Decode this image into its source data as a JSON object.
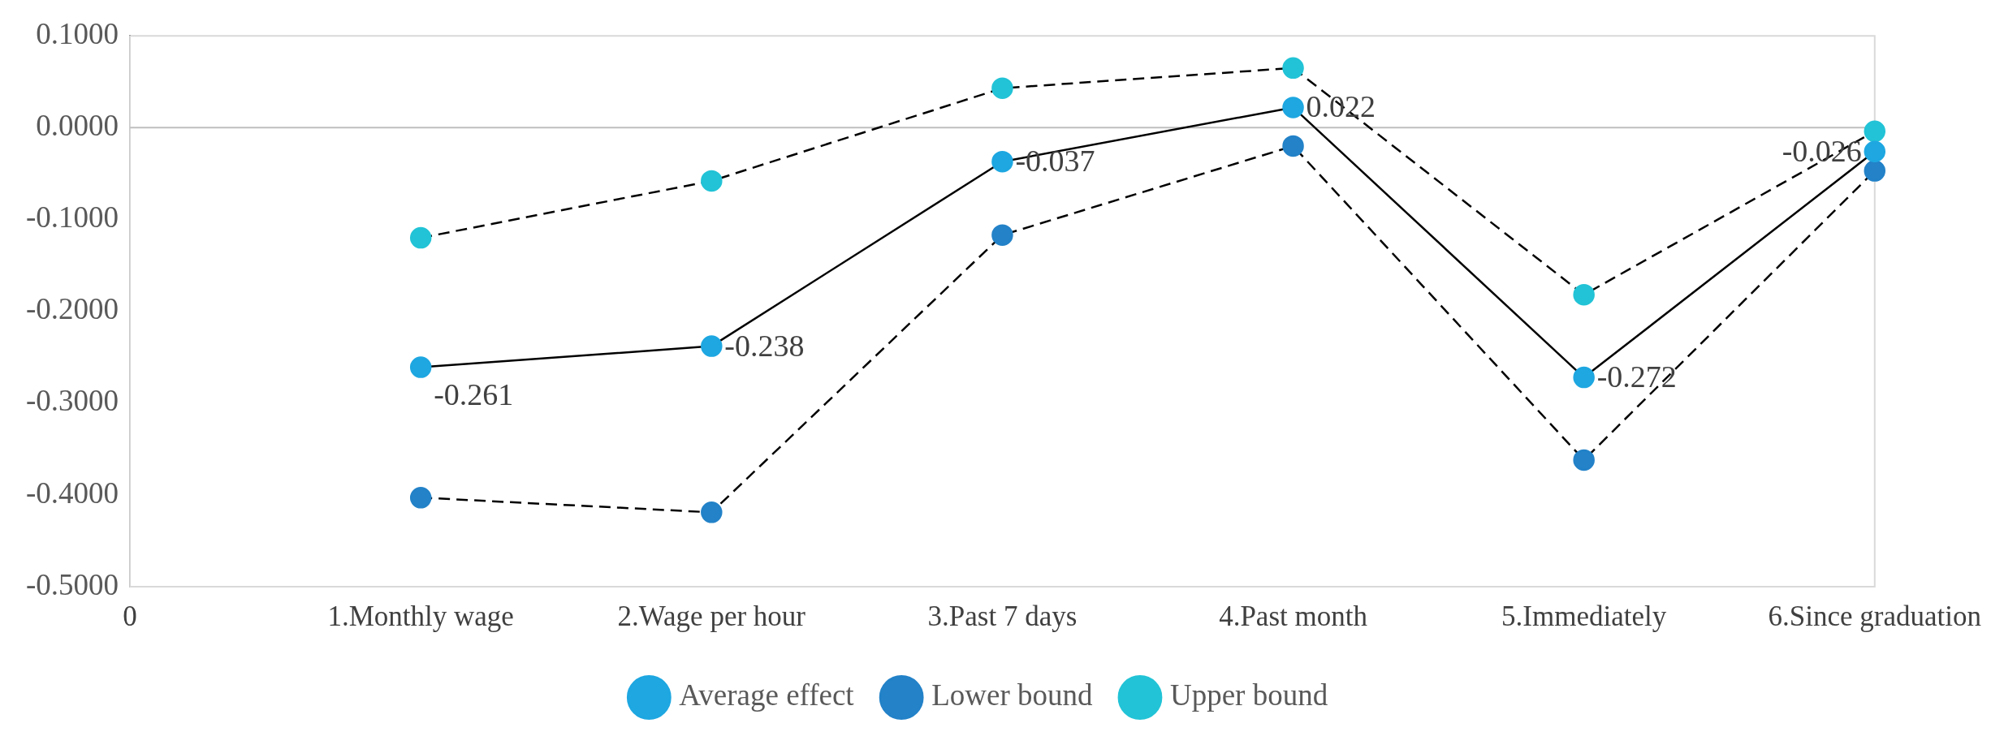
{
  "chart_data": {
    "type": "line",
    "categories": [
      "0",
      "1.Monthly wage",
      "2.Wage per hour",
      "3.Past 7 days",
      "4.Past month",
      "5.Immediately",
      "6.Since graduation"
    ],
    "series": [
      {
        "name": "Average effect",
        "color": "#1ea7e1",
        "line_style": "solid",
        "values": [
          null,
          -0.261,
          -0.238,
          -0.037,
          0.022,
          -0.272,
          -0.026
        ],
        "value_labels": [
          null,
          "-0.261",
          "-0.238",
          "-0.037",
          "0.022",
          "-0.272",
          "-0.026"
        ]
      },
      {
        "name": "Lower bound",
        "color": "#2382c8",
        "line_style": "dashed",
        "values": [
          null,
          -0.403,
          -0.419,
          -0.117,
          -0.02,
          -0.362,
          -0.047
        ]
      },
      {
        "name": "Upper bound",
        "color": "#22c3d6",
        "line_style": "dashed",
        "values": [
          null,
          -0.12,
          -0.058,
          0.043,
          0.065,
          -0.182,
          -0.004
        ]
      }
    ],
    "ylim": [
      -0.5,
      0.1
    ],
    "yticks": [
      {
        "value": -0.5,
        "label": "-0.5000"
      },
      {
        "value": -0.4,
        "label": "-0.4000"
      },
      {
        "value": -0.3,
        "label": "-0.3000"
      },
      {
        "value": -0.2,
        "label": "-0.2000"
      },
      {
        "value": -0.1,
        "label": "-0.1000"
      },
      {
        "value": 0,
        "label": "0.0000"
      },
      {
        "value": 0.1,
        "label": "0.1000"
      }
    ],
    "ref_lines": [
      {
        "axis": "y",
        "value": 0,
        "color": "#bfbfbf"
      }
    ],
    "grid": false,
    "legend": "bottom",
    "marker": "circle"
  }
}
